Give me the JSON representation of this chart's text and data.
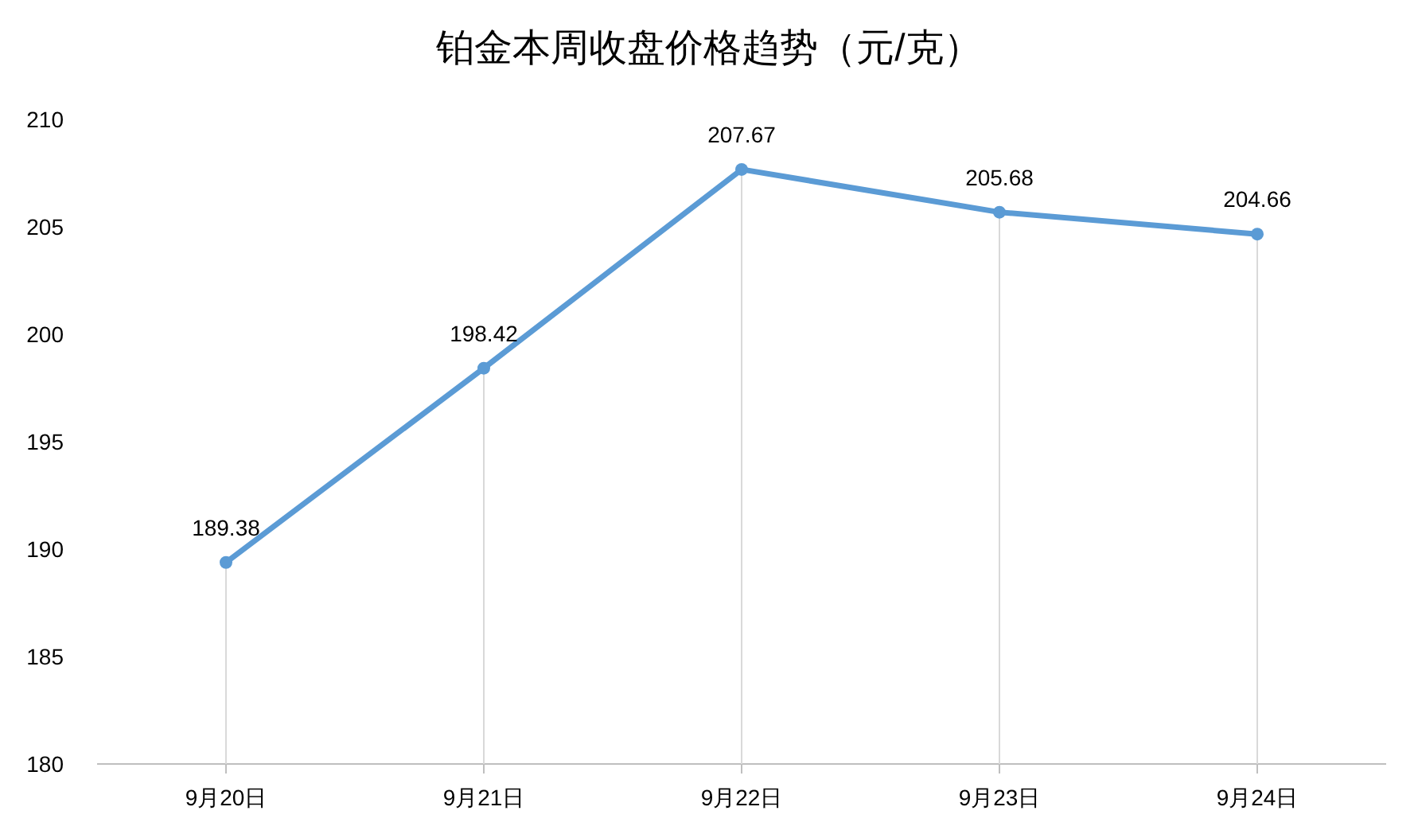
{
  "chart_data": {
    "type": "line",
    "title": "铂金本周收盘价格趋势（元/克）",
    "categories": [
      "9月20日",
      "9月21日",
      "9月22日",
      "9月23日",
      "9月24日"
    ],
    "series": [
      {
        "color": "#5b9bd5",
        "values": [
          189.38,
          198.42,
          207.67,
          205.68,
          204.66
        ]
      }
    ],
    "ylim": [
      180,
      210
    ],
    "yticks": [
      180,
      185,
      190,
      195,
      200,
      205,
      210
    ],
    "data_labels": true,
    "marker": "circle",
    "grid": "x"
  }
}
